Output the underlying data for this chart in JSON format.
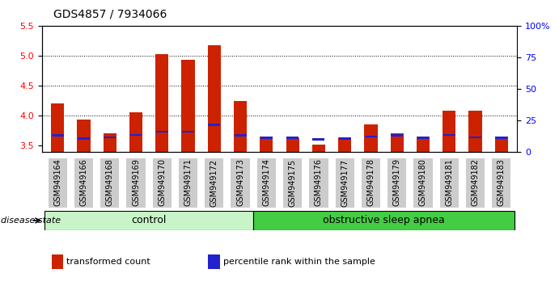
{
  "title": "GDS4857 / 7934066",
  "samples": [
    "GSM949164",
    "GSM949166",
    "GSM949168",
    "GSM949169",
    "GSM949170",
    "GSM949171",
    "GSM949172",
    "GSM949173",
    "GSM949174",
    "GSM949175",
    "GSM949176",
    "GSM949177",
    "GSM949178",
    "GSM949179",
    "GSM949180",
    "GSM949181",
    "GSM949182",
    "GSM949183"
  ],
  "red_values": [
    4.21,
    3.93,
    3.7,
    4.05,
    5.02,
    4.93,
    5.17,
    4.24,
    3.65,
    3.62,
    3.52,
    3.64,
    3.85,
    3.7,
    3.65,
    4.08,
    4.08,
    3.65
  ],
  "blue_values": [
    3.67,
    3.62,
    3.64,
    3.68,
    3.73,
    3.73,
    3.85,
    3.67,
    3.63,
    3.63,
    3.6,
    3.62,
    3.65,
    3.67,
    3.63,
    3.68,
    3.64,
    3.63
  ],
  "ylim_left": [
    3.4,
    5.5
  ],
  "ylim_right": [
    0,
    100
  ],
  "yticks_left": [
    3.5,
    4.0,
    4.5,
    5.0,
    5.5
  ],
  "yticks_right": [
    0,
    25,
    50,
    75,
    100
  ],
  "groups": [
    {
      "label": "control",
      "start": 0,
      "end": 8,
      "color": "#c8f5c8"
    },
    {
      "label": "obstructive sleep apnea",
      "start": 8,
      "end": 18,
      "color": "#44cc44"
    }
  ],
  "bar_color": "#cc2200",
  "blue_color": "#2222cc",
  "bar_width": 0.5,
  "disease_state_label": "disease state",
  "legend_items": [
    {
      "label": "transformed count",
      "color": "#cc2200"
    },
    {
      "label": "percentile rank within the sample",
      "color": "#2222cc"
    }
  ],
  "background_color": "#ffffff",
  "tick_label_fontsize": 7,
  "title_fontsize": 10,
  "grid_color": "#000000",
  "tick_gray": "#cccccc"
}
